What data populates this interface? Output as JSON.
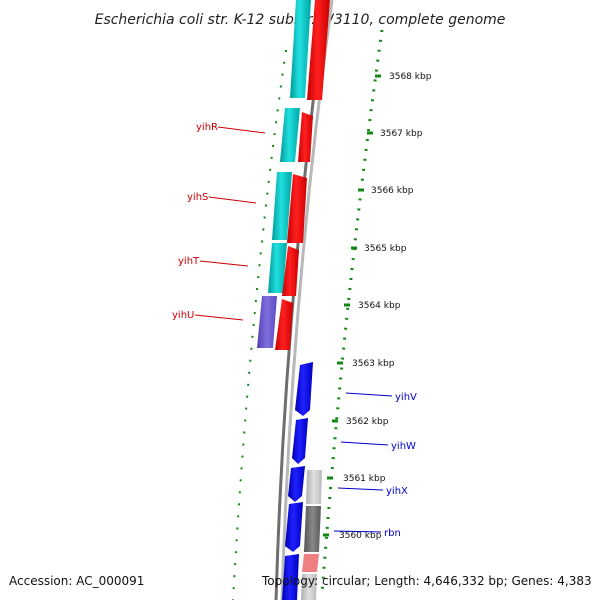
{
  "title": "Escherichia coli str. K-12 substr. W3110, complete genome",
  "accession": "Accession: AC_000091",
  "topology": "Topology: circular; Length: 4,646,332 bp; Genes: 4,383",
  "scale_ticks": [
    {
      "label": "3568 kbp",
      "kbp": 3568
    },
    {
      "label": "3567 kbp",
      "kbp": 3567
    },
    {
      "label": "3566 kbp",
      "kbp": 3566
    },
    {
      "label": "3565 kbp",
      "kbp": 3565
    },
    {
      "label": "3564 kbp",
      "kbp": 3564
    },
    {
      "label": "3563 kbp",
      "kbp": 3563
    },
    {
      "label": "3562 kbp",
      "kbp": 3562
    },
    {
      "label": "3561 kbp",
      "kbp": 3561
    },
    {
      "label": "3560 kbp",
      "kbp": 3560
    }
  ],
  "genes": [
    {
      "name": "yihR",
      "strand": "minus",
      "color": "#cc0000"
    },
    {
      "name": "yihS",
      "strand": "minus",
      "color": "#cc0000"
    },
    {
      "name": "yihT",
      "strand": "minus",
      "color": "#cc0000"
    },
    {
      "name": "yihU",
      "strand": "minus",
      "color": "#cc0000"
    },
    {
      "name": "yihV",
      "strand": "plus",
      "color": "#0000cc"
    },
    {
      "name": "yihW",
      "strand": "plus",
      "color": "#0000cc"
    },
    {
      "name": "yihX",
      "strand": "plus",
      "color": "#0000cc"
    },
    {
      "name": "rbn",
      "strand": "plus",
      "color": "#0000cc"
    }
  ],
  "colors": {
    "backbone": "#8a8a8a",
    "minus_strand_feature": "#ee0000",
    "plus_strand_feature": "#0000ee",
    "cog_cyan": "#00cccc",
    "cog_purple": "#6a5acd",
    "cog_gray": "#777777",
    "cog_pink": "#f08080",
    "gc_skew_ticks": "#118811"
  }
}
